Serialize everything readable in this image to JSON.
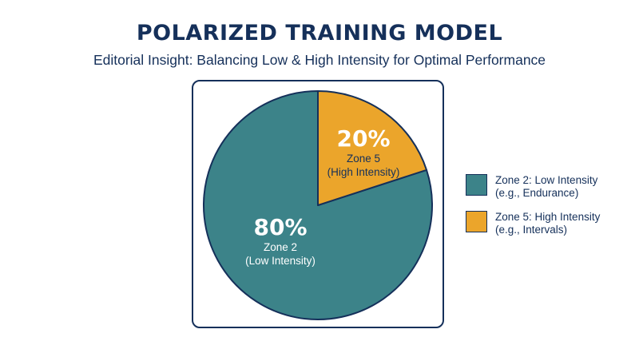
{
  "title": "POLARIZED TRAINING MODEL",
  "subtitle": "Editorial Insight: Balancing Low & High Intensity for Optimal Performance",
  "colors": {
    "zone2": "#3c8389",
    "zone5": "#eba52b",
    "border": "#15305a",
    "label_text": "#ffffff",
    "zone5_label_text": "#15305a"
  },
  "chart_data": {
    "type": "pie",
    "title": "POLARIZED TRAINING MODEL",
    "subtitle": "Editorial Insight: Balancing Low & High Intensity for Optimal Performance",
    "slices": [
      {
        "name": "Zone 2",
        "value": 80,
        "percent_label": "80%",
        "label_line1": "Zone 2",
        "label_line2": "(Low Intensity)",
        "color": "#3c8389"
      },
      {
        "name": "Zone 5",
        "value": 20,
        "percent_label": "20%",
        "label_line1": "Zone 5",
        "label_line2": "(High Intensity)",
        "color": "#eba52b"
      }
    ],
    "legend_position": "right",
    "legend": [
      {
        "line1": "Zone 2: Low Intensity",
        "line2": "(e.g., Endurance)",
        "color": "#3c8389"
      },
      {
        "line1": "Zone 5: High Intensity",
        "line2": "(e.g., Intervals)",
        "color": "#eba52b"
      }
    ]
  }
}
